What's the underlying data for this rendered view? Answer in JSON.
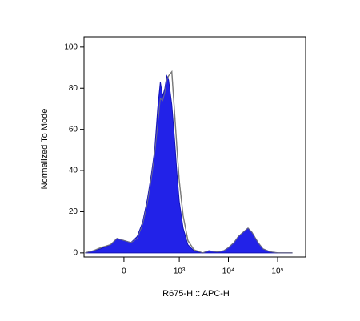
{
  "chart_data": {
    "type": "histogram-overlay",
    "xlabel": "R675-H :: APC-H",
    "ylabel": "Normalized To Mode",
    "xscale": "biexponential",
    "xlim": [
      -477,
      370000
    ],
    "ylim": [
      -2,
      105
    ],
    "xticks": [
      0,
      {
        "value": 1000,
        "label": "10³"
      },
      {
        "value": 10000,
        "label": "10⁴"
      },
      {
        "value": 100000,
        "label": "10⁵"
      }
    ],
    "yticks": [
      0,
      20,
      40,
      60,
      80,
      100
    ],
    "x": [
      -450,
      -300,
      -200,
      -100,
      -50,
      0,
      50,
      100,
      150,
      200,
      250,
      300,
      350,
      400,
      450,
      500,
      550,
      600,
      700,
      800,
      900,
      1000,
      1200,
      1500,
      2000,
      3000,
      4000,
      6000,
      8000,
      10000,
      13000,
      16000,
      20000,
      25000,
      30000,
      40000,
      50000,
      70000,
      100000,
      200000
    ],
    "series": [
      {
        "color": "#7a7a7a",
        "filled": false,
        "values": [
          0,
          1,
          2.5,
          4,
          7,
          6,
          5,
          7,
          14,
          24,
          36,
          48,
          62,
          75,
          74,
          78,
          84,
          86,
          88,
          68,
          50,
          35,
          18,
          6,
          1.5,
          0,
          1,
          0.5,
          1,
          2.5,
          5,
          8,
          10,
          12,
          10,
          5,
          2,
          0.5,
          0,
          0
        ]
      },
      {
        "color": "#2222e8",
        "filled": true,
        "values": [
          0,
          1,
          2,
          4,
          7,
          6,
          5,
          8,
          15,
          26,
          38,
          50,
          70,
          83,
          76,
          80,
          86,
          84,
          72,
          55,
          38,
          25,
          12,
          4,
          1,
          0,
          1,
          0.5,
          1,
          2.5,
          5,
          8,
          10,
          12,
          10,
          5,
          2,
          0.5,
          0,
          0
        ]
      }
    ]
  }
}
